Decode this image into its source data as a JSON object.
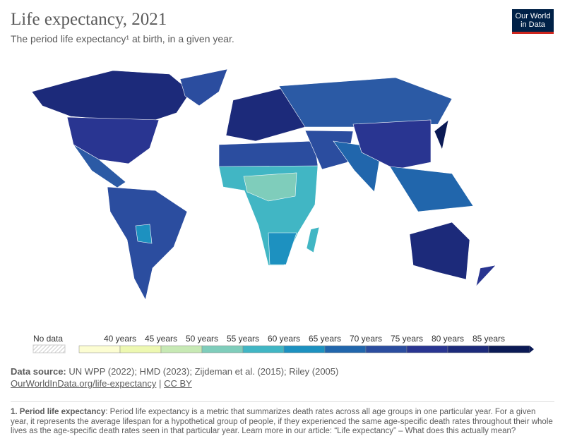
{
  "header": {
    "title": "Life expectancy, 2021",
    "subtitle": "The period life expectancy¹ at birth, in a given year.",
    "logo": [
      "Our World",
      "in Data"
    ]
  },
  "legend": {
    "no_data": "No data",
    "labels": [
      "40 years",
      "45 years",
      "50 years",
      "55 years",
      "60 years",
      "65 years",
      "70 years",
      "75 years",
      "80 years",
      "85 years"
    ],
    "colors": [
      "#fcfdd2",
      "#edf8b1",
      "#c7e9b4",
      "#7fcdbb",
      "#41b6c4",
      "#1d91c0",
      "#2166ac",
      "#2b4d9f",
      "#293591",
      "#1c2a7a",
      "#0b1a55"
    ]
  },
  "source": {
    "label": "Data source:",
    "text": "UN WPP (2022); HMD (2023); Zijdeman et al. (2015); Riley (2005)",
    "link": "OurWorldInData.org/life-expectancy",
    "separator": "|",
    "license": "CC BY"
  },
  "footnote": {
    "label": "1. Period life expectancy",
    "text": ": Period life expectancy is a metric that summarizes death rates across all age groups in one particular year. For a given year, it represents the average lifespan for a hypothetical group of people, if they experienced the same age-specific death rates throughout their whole lives as the age-specific death rates seen in that particular year. Learn more in our article: “Life expectancy” – What does this actually mean?"
  }
}
